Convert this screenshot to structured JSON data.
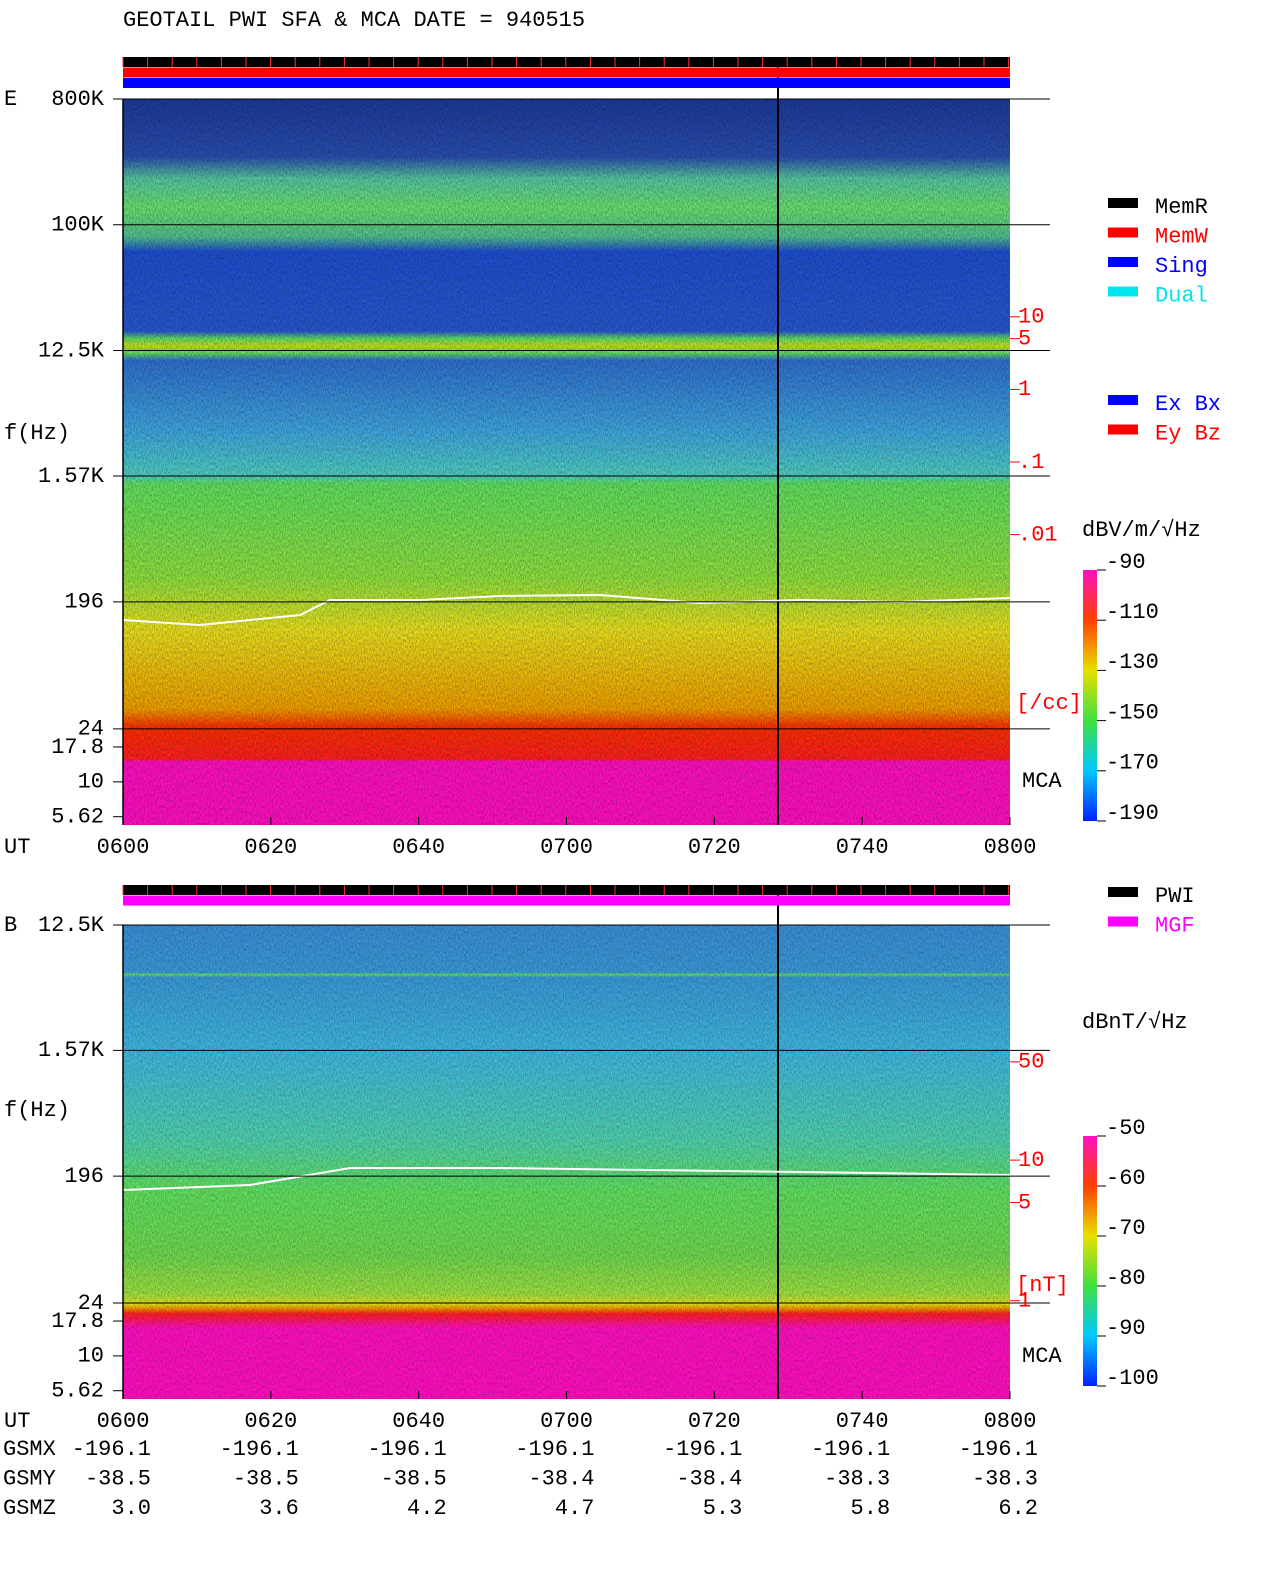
{
  "title": "GEOTAIL  PWI SFA & MCA   DATE = 940515",
  "chart_data": [
    {
      "type": "spectrogram",
      "panel_label": "E",
      "ylabel": "f(Hz)",
      "xlabel": "UT",
      "log_y": true,
      "ylim": [
        4.9,
        800000
      ],
      "yticks": [
        {
          "value": 800000,
          "label": "800K"
        },
        {
          "value": 100000,
          "label": "100K"
        },
        {
          "value": 12500,
          "label": "12.5K"
        },
        {
          "value": 1570,
          "label": "1.57K"
        },
        196,
        24,
        17.8,
        10,
        5.62
      ],
      "categories": [
        "0600",
        "0620",
        "0640",
        "0700",
        "0720",
        "0740",
        "0800"
      ],
      "region_label": "MCA",
      "colorbar": {
        "label": "dBV/m/√Hz",
        "lim": [
          -190,
          -90
        ],
        "ticks": [
          -90,
          -110,
          -130,
          -150,
          -170,
          -190
        ]
      },
      "log_y2": true,
      "y2lim": [
        1e-06,
        10000
      ],
      "y2ticks": [
        10,
        5,
        1,
        {
          "value": 0.1,
          "label": ".1"
        },
        {
          "value": 0.01,
          "label": ".01"
        }
      ],
      "y2label": "[/cc]",
      "legend": [
        {
          "name": "MemR",
          "color": "#000000"
        },
        {
          "name": "MemW",
          "color": "#ff0000"
        },
        {
          "name": "Sing",
          "color": "#0000ff"
        },
        {
          "name": "Dual",
          "color": "#00e5ee"
        }
      ],
      "legend2": [
        {
          "name": "Ex Bx",
          "color": "#0000ff"
        },
        {
          "name": "Ey Bz",
          "color": "#ff0000"
        }
      ]
    },
    {
      "type": "spectrogram",
      "panel_label": "B",
      "ylabel": "f(Hz)",
      "xlabel": "UT",
      "log_y": true,
      "ylim": [
        4.9,
        12500
      ],
      "yticks": [
        {
          "value": 12500,
          "label": "12.5K"
        },
        {
          "value": 1570,
          "label": "1.57K"
        },
        196,
        24,
        17.8,
        10,
        5.62
      ],
      "categories": [
        "0600",
        "0620",
        "0640",
        "0700",
        "0720",
        "0740",
        "0800"
      ],
      "region_label": "MCA",
      "colorbar": {
        "label": "dBnT/√Hz",
        "lim": [
          -100,
          -50
        ],
        "ticks": [
          -50,
          -60,
          -70,
          -80,
          -90,
          -100
        ]
      },
      "log_y2": true,
      "y2lim": [
        0.2,
        470
      ],
      "y2ticks": [
        50,
        10,
        5,
        1
      ],
      "y2label": "[nT]",
      "legend": [
        {
          "name": "PWI",
          "color": "#000000"
        },
        {
          "name": "MGF",
          "color": "#ff00ff"
        }
      ]
    }
  ],
  "orbit": {
    "rows": [
      {
        "label": "GSMX",
        "values": [
          "-196.1",
          "-196.1",
          "-196.1",
          "-196.1",
          "-196.1",
          "-196.1",
          "-196.1"
        ]
      },
      {
        "label": "GSMY",
        "values": [
          "-38.5",
          "-38.5",
          "-38.5",
          "-38.4",
          "-38.4",
          "-38.3",
          "-38.3"
        ]
      },
      {
        "label": "GSMZ",
        "values": [
          "3.0",
          "3.6",
          "4.2",
          "4.7",
          "5.3",
          "5.8",
          "6.2"
        ]
      }
    ]
  }
}
